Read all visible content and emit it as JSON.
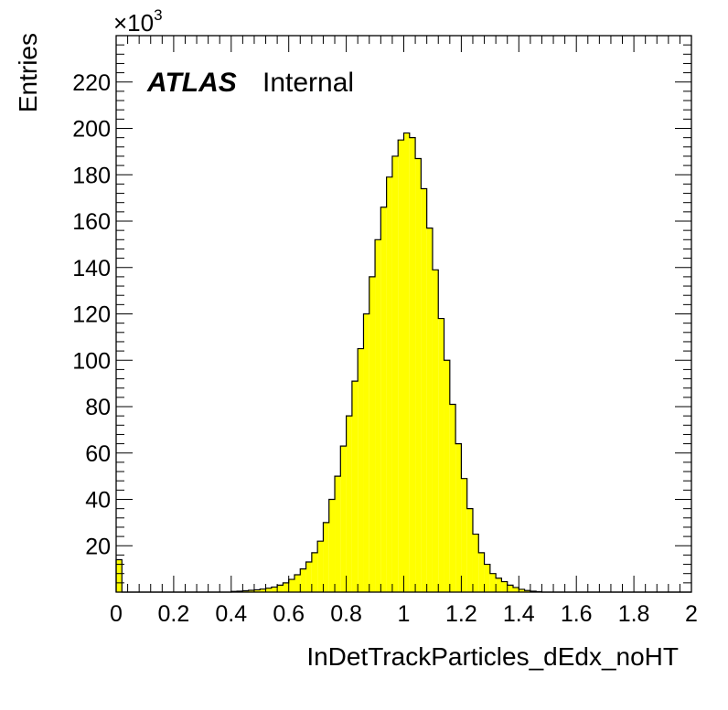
{
  "chart_data": {
    "type": "bar",
    "xlabel": "InDetTrackParticles_dEdx_noHT",
    "ylabel": "Entries",
    "xlim": [
      0,
      2
    ],
    "ylim": [
      0,
      240
    ],
    "y_scale_factor_base": "×10",
    "y_scale_factor_exp": "3",
    "x_ticks": [
      "0",
      "0.2",
      "0.4",
      "0.6",
      "0.8",
      "1",
      "1.2",
      "1.4",
      "1.6",
      "1.8",
      "2"
    ],
    "y_ticks": [
      "20",
      "40",
      "60",
      "80",
      "100",
      "120",
      "140",
      "160",
      "180",
      "200",
      "220"
    ],
    "bin_width": 0.02,
    "fill_color": "#ffff00",
    "line_color": "#000000",
    "label_atlas": "ATLAS",
    "label_status": "Internal",
    "grid": false,
    "legend": "none",
    "values": [
      14,
      0,
      0,
      0,
      0,
      0,
      0,
      0,
      0,
      0,
      0,
      0,
      0,
      0,
      0,
      0,
      0,
      0,
      0,
      0,
      0.3,
      0.4,
      0.6,
      0.8,
      1,
      1.3,
      1.7,
      2.2,
      3,
      4,
      5.5,
      7.5,
      10,
      13,
      17,
      22,
      30,
      40,
      50,
      63,
      76,
      91,
      105,
      120,
      136,
      152,
      166,
      179,
      188,
      195,
      198,
      196,
      187,
      174,
      157,
      139,
      118,
      100,
      81,
      64,
      49,
      36,
      25,
      17,
      12,
      8,
      6,
      4.5,
      3,
      2,
      1.2,
      0.7,
      0.4,
      0.2,
      0,
      0,
      0,
      0,
      0,
      0,
      0,
      0,
      0,
      0,
      0,
      0,
      0,
      0,
      0,
      0,
      0,
      0,
      0,
      0,
      0,
      0,
      0,
      0,
      0,
      0
    ]
  }
}
